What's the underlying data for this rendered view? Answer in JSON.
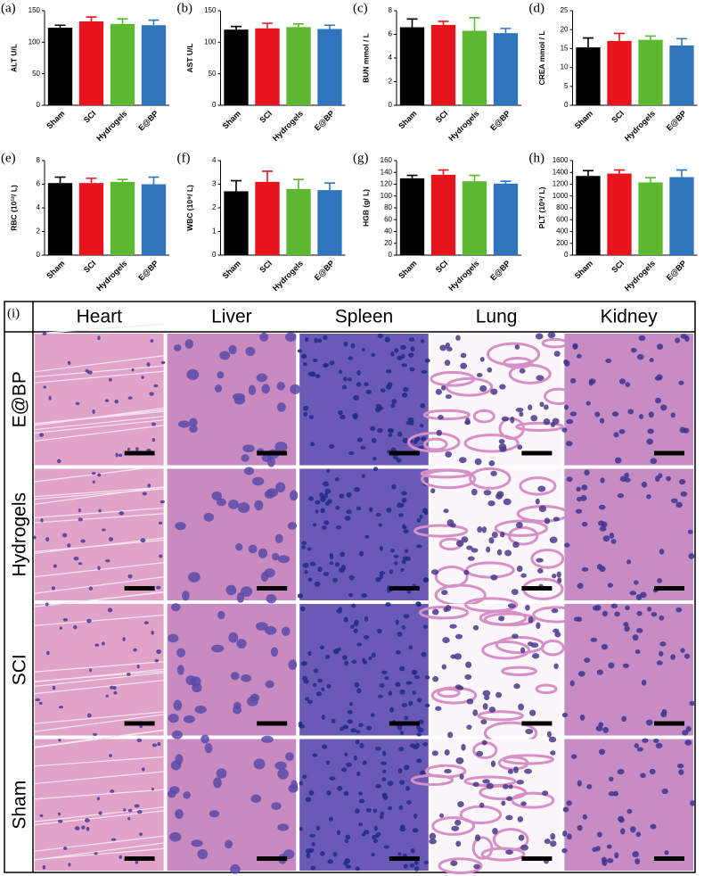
{
  "chart_data": [
    {
      "type": "bar",
      "label": "(a)",
      "ylabel": "ALT U/L",
      "categories": [
        "Sham",
        "SCI",
        "Hydrogels",
        "E@BP"
      ],
      "values": [
        123,
        133,
        129,
        127
      ],
      "errors": [
        4,
        7,
        8,
        8
      ],
      "colors": [
        "#000000",
        "#e8141c",
        "#5cb82e",
        "#2f75bd"
      ],
      "ylim": [
        0,
        150
      ],
      "yticks": [
        0,
        50,
        100,
        150
      ]
    },
    {
      "type": "bar",
      "label": "(b)",
      "ylabel": "AST U/L",
      "categories": [
        "Sham",
        "SCI",
        "Hydrogels",
        "E@BP"
      ],
      "values": [
        120,
        122,
        124,
        121
      ],
      "errors": [
        5,
        8,
        5,
        6
      ],
      "colors": [
        "#000000",
        "#e8141c",
        "#5cb82e",
        "#2f75bd"
      ],
      "ylim": [
        0,
        150
      ],
      "yticks": [
        0,
        50,
        100,
        150
      ]
    },
    {
      "type": "bar",
      "label": "(c)",
      "ylabel": "BUN mmol / L",
      "categories": [
        "Sham",
        "SCI",
        "Hydrogels",
        "E@BP"
      ],
      "values": [
        6.6,
        6.8,
        6.3,
        6.1
      ],
      "errors": [
        0.7,
        0.3,
        1.1,
        0.4
      ],
      "colors": [
        "#000000",
        "#e8141c",
        "#5cb82e",
        "#2f75bd"
      ],
      "ylim": [
        0,
        8
      ],
      "yticks": [
        0,
        2,
        4,
        6,
        8
      ]
    },
    {
      "type": "bar",
      "label": "(d)",
      "ylabel": "CREA mmol / L",
      "categories": [
        "Sham",
        "SCI",
        "Hydrogels",
        "E@BP"
      ],
      "values": [
        15.3,
        17,
        17.3,
        15.8
      ],
      "errors": [
        2.5,
        2,
        1,
        1.8
      ],
      "colors": [
        "#000000",
        "#e8141c",
        "#5cb82e",
        "#2f75bd"
      ],
      "ylim": [
        0,
        25
      ],
      "yticks": [
        0,
        5,
        10,
        15,
        20,
        25
      ]
    },
    {
      "type": "bar",
      "label": "(e)",
      "ylabel": "RBC (10¹²/ L)",
      "categories": [
        "Sham",
        "SCI",
        "Hydrogels",
        "E@BP"
      ],
      "values": [
        6.1,
        6.1,
        6.2,
        6.0
      ],
      "errors": [
        0.5,
        0.4,
        0.2,
        0.6
      ],
      "colors": [
        "#000000",
        "#e8141c",
        "#5cb82e",
        "#2f75bd"
      ],
      "ylim": [
        0,
        8
      ],
      "yticks": [
        0,
        2,
        4,
        6,
        8
      ]
    },
    {
      "type": "bar",
      "label": "(f)",
      "ylabel": "WBC (10⁹/ L)",
      "categories": [
        "Sham",
        "SCI",
        "Hydrogels",
        "E@BP"
      ],
      "values": [
        2.7,
        3.1,
        2.8,
        2.75
      ],
      "errors": [
        0.45,
        0.45,
        0.4,
        0.3
      ],
      "colors": [
        "#000000",
        "#e8141c",
        "#5cb82e",
        "#2f75bd"
      ],
      "ylim": [
        0,
        4
      ],
      "yticks": [
        0,
        1,
        2,
        3,
        4
      ]
    },
    {
      "type": "bar",
      "label": "(g)",
      "ylabel": "HGB (g/ L)",
      "categories": [
        "Sham",
        "SCI",
        "Hydrogels",
        "E@BP"
      ],
      "values": [
        130,
        136,
        125,
        121
      ],
      "errors": [
        5,
        8,
        10,
        4
      ],
      "colors": [
        "#000000",
        "#e8141c",
        "#5cb82e",
        "#2f75bd"
      ],
      "ylim": [
        0,
        160
      ],
      "yticks": [
        0,
        20,
        40,
        60,
        80,
        100,
        120,
        140,
        160
      ]
    },
    {
      "type": "bar",
      "label": "(h)",
      "ylabel": "PLT (10⁹/ L)",
      "categories": [
        "Sham",
        "SCI",
        "Hydrogels",
        "E@BP"
      ],
      "values": [
        1340,
        1380,
        1230,
        1320
      ],
      "errors": [
        90,
        60,
        80,
        120
      ],
      "colors": [
        "#000000",
        "#e8141c",
        "#5cb82e",
        "#2f75bd"
      ],
      "ylim": [
        0,
        1600
      ],
      "yticks": [
        0,
        200,
        400,
        600,
        800,
        1000,
        1200,
        1400,
        1600
      ]
    }
  ],
  "histology": {
    "label": "(i)",
    "columns": [
      "Heart",
      "Liver",
      "Spleen",
      "Lung",
      "Kidney"
    ],
    "rows": [
      "E@BP",
      "Hydrogels",
      "SCI",
      "Sham"
    ]
  }
}
